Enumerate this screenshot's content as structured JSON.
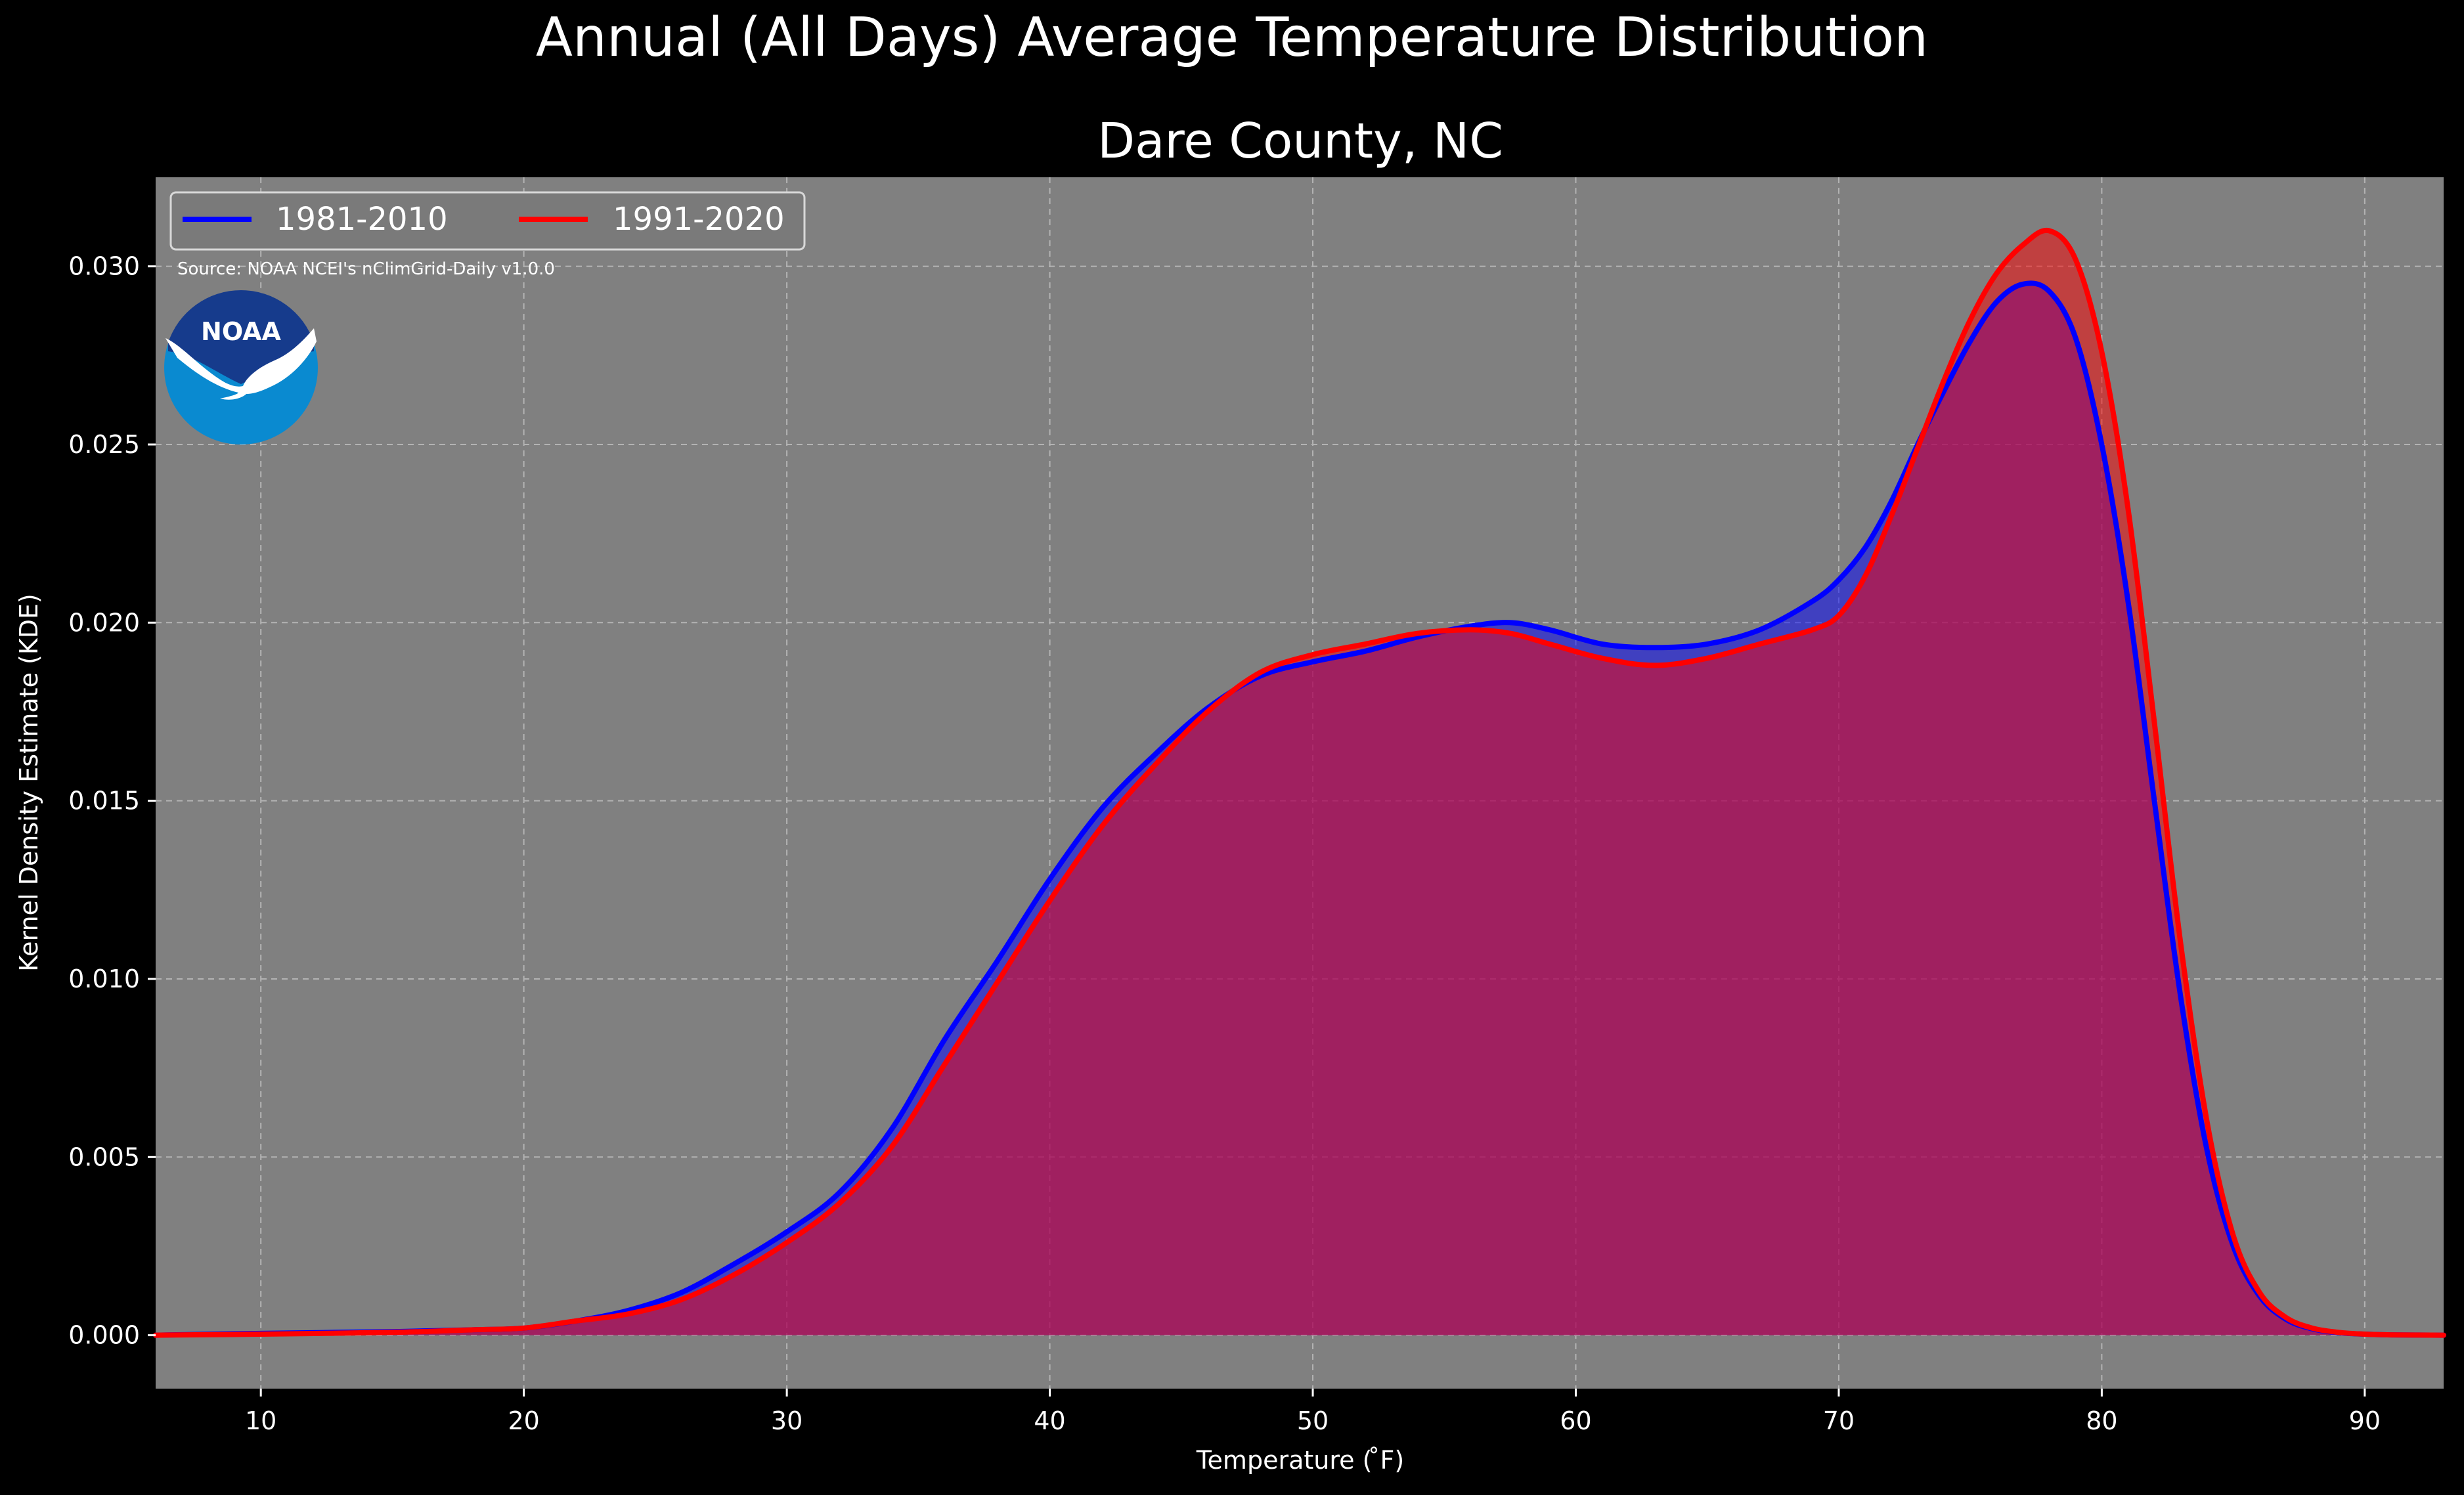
{
  "chart_data": {
    "type": "area",
    "suptitle": "Annual (All Days) Average Temperature Distribution",
    "title": "Dare County, NC",
    "xlabel": "Temperature ($^\\circ$F)",
    "xlabel_display": "Temperature ( ̊F)",
    "ylabel": "Kernel Density Estimate (KDE)",
    "xlim": [
      6,
      93
    ],
    "ylim": [
      -0.0015,
      0.0325
    ],
    "xticks": [
      10,
      20,
      30,
      40,
      50,
      60,
      70,
      80,
      90
    ],
    "xtick_labels": [
      "10",
      "20",
      "30",
      "40",
      "50",
      "60",
      "70",
      "80",
      "90"
    ],
    "yticks": [
      0.0,
      0.005,
      0.01,
      0.015,
      0.02,
      0.025,
      0.03
    ],
    "ytick_labels": [
      "0.000",
      "0.005",
      "0.010",
      "0.015",
      "0.020",
      "0.025",
      "0.030"
    ],
    "grid": true,
    "legend_position": "top-left",
    "source_note": "Source: NOAA NCEI's nClimGrid-Daily v1.0.0",
    "logo_text": "NOAA",
    "colors": {
      "figure_bg": "#000000",
      "plot_bg": "#808080",
      "text": "#ffffff",
      "series_1981_2010": "#0000ff",
      "series_1991_2020": "#ff0000",
      "overlap_fill": "#9c1f5c"
    },
    "series": [
      {
        "name": "1981-2010",
        "color": "#0000ff",
        "x": [
          6,
          10,
          15,
          18,
          20,
          22,
          24,
          26,
          28,
          30,
          32,
          34,
          36,
          38,
          40,
          42,
          44,
          46,
          48,
          50,
          52,
          54,
          56,
          57.5,
          59,
          61,
          63,
          65,
          67,
          69,
          70,
          71,
          72,
          73,
          74,
          75,
          76,
          77,
          78,
          79,
          80,
          81,
          82,
          83,
          84,
          85,
          86,
          87,
          88,
          89,
          90,
          91,
          93
        ],
        "y": [
          0.0,
          5e-05,
          0.0001,
          0.00015,
          0.0002,
          0.0004,
          0.0007,
          0.0012,
          0.002,
          0.0029,
          0.004,
          0.0058,
          0.0083,
          0.0105,
          0.0128,
          0.0148,
          0.0163,
          0.0176,
          0.0185,
          0.0189,
          0.0192,
          0.0196,
          0.0199,
          0.02,
          0.0198,
          0.0194,
          0.0193,
          0.0194,
          0.0198,
          0.0206,
          0.0212,
          0.0221,
          0.0234,
          0.025,
          0.0265,
          0.0279,
          0.029,
          0.0295,
          0.0293,
          0.028,
          0.025,
          0.0206,
          0.015,
          0.0095,
          0.0052,
          0.0025,
          0.0011,
          0.00045,
          0.00018,
          7e-05,
          3e-05,
          1e-05,
          0.0
        ]
      },
      {
        "name": "1991-2020",
        "color": "#ff0000",
        "x": [
          6,
          10,
          15,
          18,
          20,
          22,
          24,
          26,
          28,
          30,
          32,
          34,
          36,
          38,
          40,
          42,
          44,
          46,
          48,
          50,
          52,
          54,
          56,
          57.5,
          59,
          61,
          63,
          65,
          67,
          69,
          70,
          71,
          72,
          73,
          74,
          75,
          76,
          77,
          78,
          79,
          80,
          81,
          82,
          83,
          84,
          85,
          86,
          87,
          88,
          89,
          90,
          91,
          93
        ],
        "y": [
          0.0,
          3e-05,
          8e-05,
          0.00015,
          0.0002,
          0.0004,
          0.0006,
          0.001,
          0.0017,
          0.0026,
          0.0037,
          0.0053,
          0.0076,
          0.0099,
          0.0122,
          0.0143,
          0.016,
          0.0175,
          0.0186,
          0.0191,
          0.0194,
          0.0197,
          0.0198,
          0.0197,
          0.0194,
          0.019,
          0.0188,
          0.019,
          0.0194,
          0.0198,
          0.0202,
          0.0213,
          0.023,
          0.0249,
          0.0268,
          0.0285,
          0.0298,
          0.0306,
          0.031,
          0.0302,
          0.0276,
          0.0232,
          0.0172,
          0.011,
          0.006,
          0.0028,
          0.0012,
          0.0005,
          0.0002,
          8e-05,
          3e-05,
          1e-05,
          0.0
        ]
      }
    ]
  }
}
